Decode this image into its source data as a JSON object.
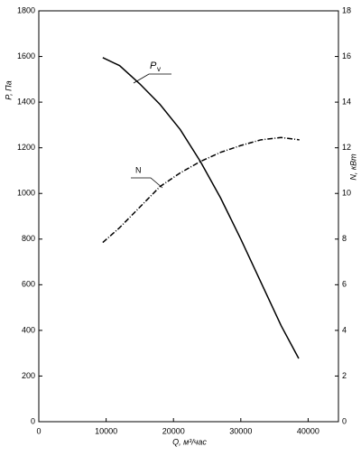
{
  "chart_data": {
    "type": "line",
    "x_label": "Q, м³/час",
    "y_label": "P, Па",
    "y2_label": "N, кВт",
    "annotations": [
      {
        "text": "P",
        "sub": "v"
      },
      {
        "text": "N"
      }
    ],
    "xlim": [
      0,
      44500
    ],
    "xticks": [
      0,
      10000,
      20000,
      30000,
      40000
    ],
    "ylim": [
      0,
      1800
    ],
    "yticks": [
      0,
      200,
      400,
      600,
      800,
      1000,
      1200,
      1400,
      1600,
      1800
    ],
    "y2lim": [
      0,
      18
    ],
    "y2ticks": [
      0,
      2,
      4,
      6,
      8,
      10,
      12,
      14,
      16,
      18
    ],
    "series": [
      {
        "name": "Pv",
        "color": "#000000",
        "dash": "none",
        "x": [
          9500,
          12000,
          15000,
          18000,
          21000,
          24000,
          27000,
          30000,
          33000,
          36000,
          38600
        ],
        "values": [
          1595,
          1560,
          1480,
          1390,
          1280,
          1140,
          980,
          800,
          610,
          420,
          277
        ]
      },
      {
        "name": "N",
        "color": "#000000",
        "dash": "6 2 1 2",
        "axis": "y2",
        "x": [
          9500,
          12000,
          15000,
          18000,
          21000,
          24000,
          27000,
          30000,
          33000,
          36000,
          38700
        ],
        "values": [
          7.85,
          8.5,
          9.4,
          10.3,
          10.9,
          11.4,
          11.8,
          12.1,
          12.35,
          12.45,
          12.35
        ]
      }
    ]
  }
}
